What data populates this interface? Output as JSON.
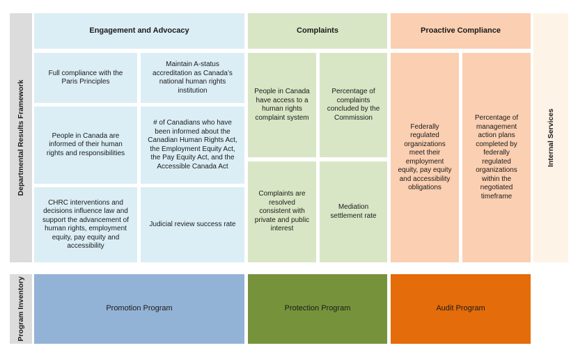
{
  "side_labels": {
    "framework": "Departmental Results Framework",
    "inventory": "Program Inventory"
  },
  "columns": {
    "engagement": {
      "title": "Engagement and Advocacy",
      "results": [
        "Full compliance with the Paris Principles",
        "People in Canada are informed of their human rights and responsibilities",
        "CHRC interventions and decisions influence law and support the advancement of human rights, employment equity, pay equity and accessibility"
      ],
      "indicators": [
        "Maintain A-status accreditation as Canada’s national human rights institution",
        "# of Canadians who have been informed about the Canadian Human Rights Act, the Employment Equity Act, the Pay Equity Act, and the Accessible Canada Act",
        "Judicial review success rate"
      ],
      "program": "Promotion Program"
    },
    "complaints": {
      "title": "Complaints",
      "results": [
        "People in Canada have access to a human rights complaint system",
        "Complaints are resolved consistent with private and public interest"
      ],
      "indicators": [
        "Percentage of complaints concluded by the Commission",
        "Mediation settlement rate"
      ],
      "program": "Protection Program"
    },
    "compliance": {
      "title": "Proactive Compliance",
      "results": [
        "Federally regulated organizations meet their employment equity, pay equity and accessibility obligations"
      ],
      "indicators": [
        "Percentage of management action plans completed by federally regulated organizations within the negotiated timeframe"
      ],
      "program": "Audit Program"
    },
    "internal": {
      "title": "Internal Services"
    }
  },
  "colors": {
    "engagement_light": "#dbeef5",
    "complaints_light": "#d9e6c5",
    "compliance_light": "#fbcfb1",
    "promotion_program": "#93b3d6",
    "protection_program": "#76933c",
    "audit_program": "#e46c0a",
    "internal_services": "#fdf3e7",
    "side_band": "#dcdcdc"
  }
}
